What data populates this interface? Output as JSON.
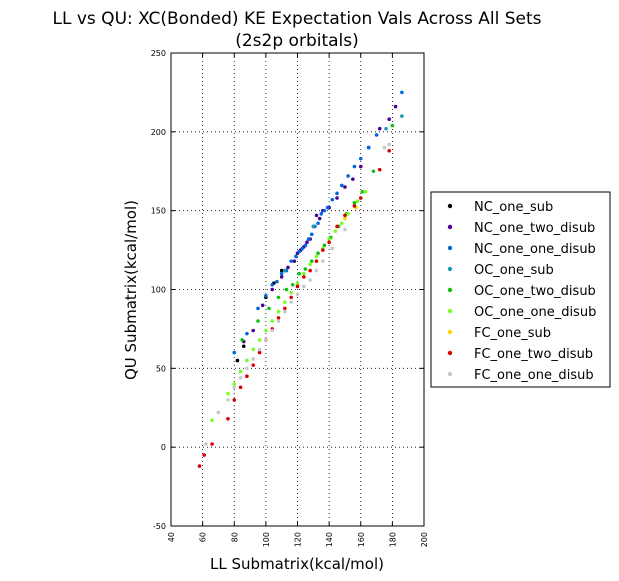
{
  "chart_data": {
    "type": "scatter",
    "title": "LL vs QU: XC(Bonded) KE Expectation Vals Across All Sets",
    "subtitle": "(2s2p orbitals)",
    "xlabel": "LL Submatrix(kcal/mol)",
    "ylabel": "QU Submatrix(kcal/mol)",
    "xlim": [
      40,
      200
    ],
    "ylim": [
      -50,
      250
    ],
    "xticks": [
      40,
      60,
      80,
      100,
      120,
      140,
      160,
      180,
      200
    ],
    "yticks": [
      -50,
      0,
      50,
      100,
      150,
      200,
      250
    ],
    "grid": true,
    "legend_position": "right",
    "series": [
      {
        "name": "NC_one_sub",
        "color": "#000000",
        "x": [
          82,
          86,
          100,
          105,
          110
        ],
        "y": [
          55,
          64,
          95,
          104,
          112
        ]
      },
      {
        "name": "NC_one_two_disub",
        "color": "#4b0096",
        "x": [
          86,
          92,
          98,
          104,
          110,
          112,
          114,
          118,
          120,
          122,
          124,
          126,
          128,
          130,
          132,
          134,
          136,
          140,
          145,
          150,
          155,
          160,
          165,
          172,
          178,
          182
        ],
        "y": [
          67,
          74,
          90,
          100,
          108,
          112,
          114,
          118,
          123,
          125,
          127,
          130,
          132,
          140,
          147,
          145,
          150,
          152,
          158,
          165,
          170,
          178,
          190,
          202,
          208,
          216
        ]
      },
      {
        "name": "NC_one_one_disub",
        "color": "#0066dd",
        "x": [
          80,
          88,
          95,
          100,
          104,
          107,
          110,
          113,
          116,
          119,
          121,
          123,
          125,
          127,
          129,
          131,
          133,
          135,
          137,
          139,
          142,
          145,
          148,
          152,
          156,
          160,
          165,
          170,
          186
        ],
        "y": [
          60,
          72,
          88,
          96,
          103,
          105,
          110,
          112,
          118,
          121,
          124,
          126,
          128,
          132,
          135,
          140,
          142,
          148,
          150,
          152,
          157,
          161,
          166,
          172,
          178,
          183,
          190,
          198,
          225
        ]
      },
      {
        "name": "OC_one_sub",
        "color": "#1a9aaa",
        "x": [
          112,
          130,
          176,
          186
        ],
        "y": [
          112,
          140,
          202,
          210
        ]
      },
      {
        "name": "OC_one_two_disub",
        "color": "#10c010",
        "x": [
          85,
          95,
          102,
          108,
          113,
          117,
          121,
          125,
          129,
          133,
          137,
          141,
          146,
          151,
          156,
          161,
          168,
          180
        ],
        "y": [
          68,
          80,
          88,
          95,
          100,
          103,
          110,
          113,
          118,
          123,
          128,
          133,
          140,
          148,
          155,
          162,
          175,
          204
        ]
      },
      {
        "name": "OC_one_one_disub",
        "color": "#77ff22",
        "x": [
          66,
          76,
          80,
          84,
          88,
          92,
          96,
          100,
          104,
          108,
          112,
          116,
          120,
          124,
          128,
          132,
          136,
          140,
          144,
          148,
          152,
          158,
          163
        ],
        "y": [
          17,
          34,
          40,
          48,
          55,
          62,
          68,
          74,
          80,
          86,
          92,
          98,
          104,
          110,
          116,
          121,
          126,
          132,
          137,
          142,
          148,
          156,
          162
        ]
      },
      {
        "name": "FC_one_sub",
        "color": "#ffd000",
        "x": [
          150,
          157
        ],
        "y": [
          145,
          152
        ]
      },
      {
        "name": "FC_one_two_disub",
        "color": "#dd0000",
        "x": [
          58,
          61,
          66,
          76,
          80,
          84,
          88,
          92,
          96,
          100,
          104,
          108,
          112,
          116,
          120,
          124,
          128,
          132,
          136,
          140,
          145,
          150,
          156,
          160,
          172,
          178
        ],
        "y": [
          -12,
          -5,
          2,
          18,
          30,
          38,
          45,
          52,
          60,
          68,
          75,
          82,
          88,
          95,
          102,
          108,
          112,
          118,
          125,
          130,
          140,
          147,
          153,
          158,
          176,
          188
        ]
      },
      {
        "name": "FC_one_one_disub",
        "color": "#c8c8c8",
        "x": [
          62,
          70,
          76,
          80,
          84,
          88,
          92,
          96,
          100,
          104,
          108,
          112,
          116,
          120,
          124,
          128,
          132,
          136,
          142,
          150,
          175,
          178
        ],
        "y": [
          2,
          22,
          30,
          38,
          44,
          50,
          56,
          62,
          68,
          74,
          80,
          86,
          92,
          97,
          102,
          106,
          112,
          118,
          126,
          138,
          190,
          192
        ]
      }
    ]
  }
}
